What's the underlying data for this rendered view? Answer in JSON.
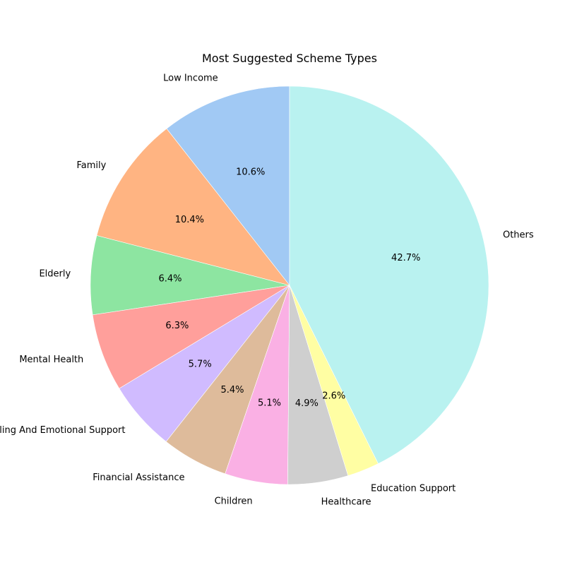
{
  "chart_data": {
    "type": "pie",
    "title": "Most Suggested Scheme Types",
    "start_angle_deg": 90,
    "direction": "counterclockwise",
    "slices": [
      {
        "label": "Low Income",
        "value": 10.6,
        "pct_label": "10.6%",
        "color": "#a1c9f4"
      },
      {
        "label": "Family",
        "value": 10.4,
        "pct_label": "10.4%",
        "color": "#ffb482"
      },
      {
        "label": "Elderly",
        "value": 6.4,
        "pct_label": "6.4%",
        "color": "#8de5a1"
      },
      {
        "label": "Mental Health",
        "value": 6.3,
        "pct_label": "6.3%",
        "color": "#ff9f9b"
      },
      {
        "label": "Counselling And Emotional Support",
        "value": 5.7,
        "pct_label": "5.7%",
        "color": "#d0bbff"
      },
      {
        "label": "Financial Assistance",
        "value": 5.4,
        "pct_label": "5.4%",
        "color": "#debb9b"
      },
      {
        "label": "Children",
        "value": 5.1,
        "pct_label": "5.1%",
        "color": "#fab0e4"
      },
      {
        "label": "Healthcare",
        "value": 4.9,
        "pct_label": "4.9%",
        "color": "#cfcfcf"
      },
      {
        "label": "Education Support",
        "value": 2.6,
        "pct_label": "2.6%",
        "color": "#fffea3"
      },
      {
        "label": "Others",
        "value": 42.7,
        "pct_label": "42.7%",
        "color": "#b9f2f0"
      }
    ]
  }
}
